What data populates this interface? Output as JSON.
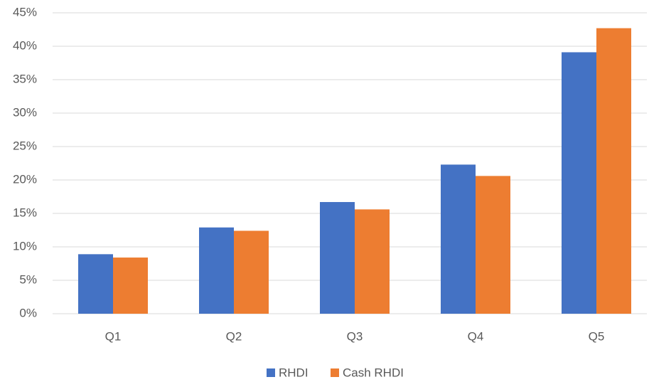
{
  "chart_data": {
    "type": "bar",
    "categories": [
      "Q1",
      "Q2",
      "Q3",
      "Q4",
      "Q5"
    ],
    "series": [
      {
        "name": "RHDI",
        "color": "#4472c4",
        "values": [
          8.9,
          12.9,
          16.7,
          22.3,
          39.1
        ]
      },
      {
        "name": "Cash RHDI",
        "color": "#ed7d31",
        "values": [
          8.4,
          12.4,
          15.6,
          20.6,
          42.7
        ]
      }
    ],
    "ylim": [
      0,
      45
    ],
    "yticks": [
      {
        "value": 0,
        "label": "0%"
      },
      {
        "value": 5,
        "label": "5%"
      },
      {
        "value": 10,
        "label": "10%"
      },
      {
        "value": 15,
        "label": "15%"
      },
      {
        "value": 20,
        "label": "20%"
      },
      {
        "value": 25,
        "label": "25%"
      },
      {
        "value": 30,
        "label": "30%"
      },
      {
        "value": 35,
        "label": "35%"
      },
      {
        "value": 40,
        "label": "40%"
      },
      {
        "value": 45,
        "label": "45%"
      }
    ],
    "grid": true,
    "legend": "bottom"
  }
}
